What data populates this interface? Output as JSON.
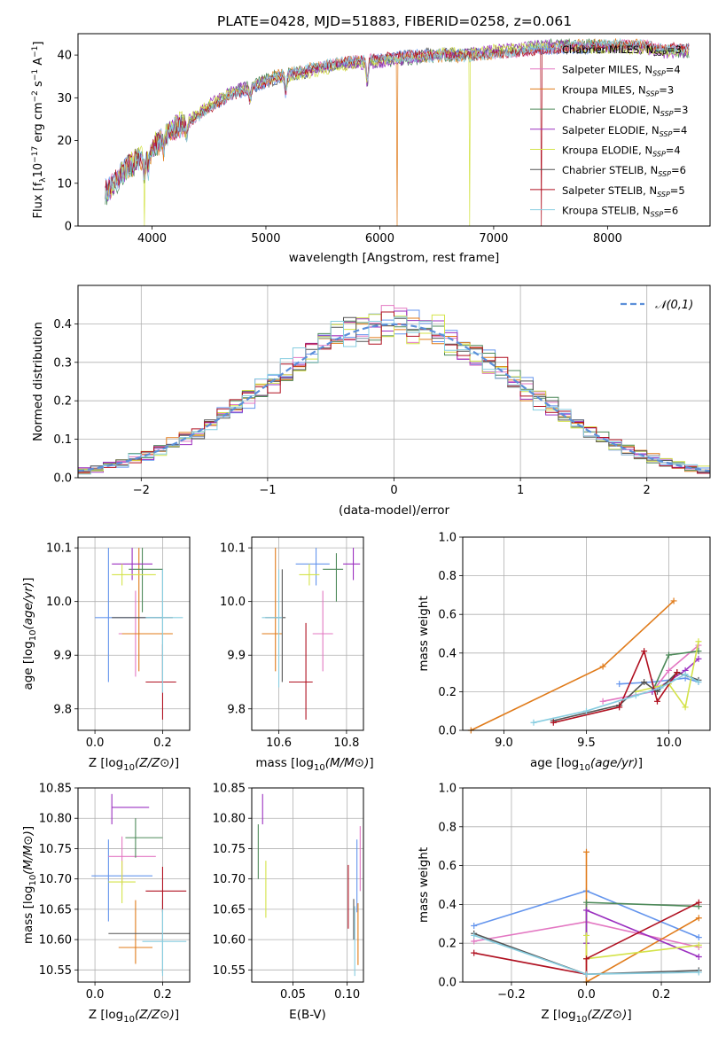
{
  "figure_title": "PLATE=0428, MJD=51883, FIBERID=0258, z=0.061",
  "models": [
    {
      "name": "Chabrier MILES",
      "nssp": "3",
      "color": "#6495ed"
    },
    {
      "name": "Salpeter MILES",
      "nssp": "4",
      "color": "#e377c2"
    },
    {
      "name": "Kroupa MILES",
      "nssp": "3",
      "color": "#e07b1a"
    },
    {
      "name": "Chabrier ELODIE",
      "nssp": "3",
      "color": "#4e8a5a"
    },
    {
      "name": "Salpeter ELODIE",
      "nssp": "4",
      "color": "#9b30c0"
    },
    {
      "name": "Kroupa ELODIE",
      "nssp": "4",
      "color": "#d4e34a"
    },
    {
      "name": "Chabrier STELIB",
      "nssp": "6",
      "color": "#555555"
    },
    {
      "name": "Salpeter STELIB",
      "nssp": "5",
      "color": "#b01020"
    },
    {
      "name": "Kroupa STELIB",
      "nssp": "6",
      "color": "#87cde0"
    }
  ],
  "chart_data": [
    {
      "id": "spectrum",
      "type": "line",
      "xlabel": "wavelength [Angstrom, rest frame]",
      "ylabel": "Flux [f",
      "xlim": [
        3350,
        8900
      ],
      "ylim": [
        0,
        45
      ],
      "xticks": [
        4000,
        5000,
        6000,
        7000,
        8000
      ],
      "yticks": [
        0,
        10,
        20,
        30,
        40
      ],
      "continuum": [
        [
          3600,
          8
        ],
        [
          3700,
          11
        ],
        [
          3800,
          14
        ],
        [
          3900,
          16
        ],
        [
          4000,
          18
        ],
        [
          4100,
          21
        ],
        [
          4200,
          23
        ],
        [
          4300,
          24
        ],
        [
          4500,
          28
        ],
        [
          4700,
          31
        ],
        [
          4900,
          33
        ],
        [
          5100,
          35
        ],
        [
          5300,
          36
        ],
        [
          5500,
          37
        ],
        [
          5700,
          38
        ],
        [
          5900,
          38.5
        ],
        [
          6100,
          39
        ],
        [
          6300,
          39.5
        ],
        [
          6500,
          40
        ],
        [
          6700,
          40
        ],
        [
          6900,
          40.5
        ],
        [
          7100,
          41
        ],
        [
          7300,
          41.5
        ],
        [
          7500,
          42
        ],
        [
          7700,
          42
        ],
        [
          7900,
          42
        ],
        [
          8100,
          42
        ],
        [
          8300,
          42
        ],
        [
          8500,
          41
        ],
        [
          8700,
          41
        ]
      ],
      "absorption": [
        [
          3933,
          5
        ],
        [
          3968,
          4
        ],
        [
          4101,
          3
        ],
        [
          4304,
          3
        ],
        [
          4861,
          3
        ],
        [
          5175,
          4
        ],
        [
          5890,
          5
        ],
        [
          6563,
          -3
        ],
        [
          6563,
          2
        ]
      ],
      "drops": [
        {
          "model": 5,
          "x": 3930
        },
        {
          "model": 2,
          "x": 6150
        },
        {
          "model": 5,
          "x": 6790
        },
        {
          "model": 7,
          "x": 7420
        }
      ]
    },
    {
      "id": "residuals",
      "type": "histogram",
      "xlabel": "(data-model)/error",
      "ylabel": "Normed distribution",
      "xlim": [
        -2.5,
        2.5
      ],
      "ylim": [
        0,
        0.5
      ],
      "xticks": [
        -2,
        -1,
        0,
        1,
        2
      ],
      "yticks": [
        0.0,
        0.1,
        0.2,
        0.3,
        0.4
      ],
      "bin_width": 0.1,
      "reference_label": "𝒩(0,1)",
      "reference_color": "#5b8fd9"
    },
    {
      "id": "age_vs_Z",
      "type": "errorbar",
      "xlabel": "Z [log10(Z/Z⊙)]",
      "ylabel": "age [log10(age/yr)]",
      "xlim": [
        -0.05,
        0.28
      ],
      "ylim": [
        9.76,
        10.12
      ],
      "xticks": [
        0.0,
        0.2
      ],
      "yticks": [
        9.8,
        9.9,
        10.0,
        10.1
      ],
      "points": [
        {
          "m": 0,
          "x": 0.04,
          "y": 9.97,
          "xl": 0.0,
          "xh": 0.2,
          "yl": 9.85,
          "yh": 10.1
        },
        {
          "m": 1,
          "x": 0.12,
          "y": 9.94,
          "xl": 0.07,
          "xh": 0.2,
          "yl": 9.86,
          "yh": 10.02
        },
        {
          "m": 2,
          "x": 0.13,
          "y": 9.94,
          "xl": 0.08,
          "xh": 0.23,
          "yl": 9.87,
          "yh": 10.1
        },
        {
          "m": 3,
          "x": 0.14,
          "y": 10.06,
          "xl": 0.1,
          "xh": 0.2,
          "yl": 9.98,
          "yh": 10.1
        },
        {
          "m": 4,
          "x": 0.11,
          "y": 10.07,
          "xl": 0.05,
          "xh": 0.17,
          "yl": 10.04,
          "yh": 10.1
        },
        {
          "m": 5,
          "x": 0.08,
          "y": 10.05,
          "xl": 0.05,
          "xh": 0.18,
          "yl": 10.03,
          "yh": 10.07
        },
        {
          "m": 6,
          "x": 0.2,
          "y": 9.97,
          "xl": 0.05,
          "xh": 0.23,
          "yl": 9.85,
          "yh": 10.06
        },
        {
          "m": 7,
          "x": 0.2,
          "y": 9.85,
          "xl": 0.15,
          "xh": 0.24,
          "yl": 9.78,
          "yh": 9.92
        },
        {
          "m": 8,
          "x": 0.2,
          "y": 9.97,
          "xl": 0.15,
          "xh": 0.26,
          "yl": 9.83,
          "yh": 10.06
        }
      ]
    },
    {
      "id": "age_vs_mass",
      "type": "errorbar",
      "xlabel": "mass [log10(M/M⊙)]",
      "ylabel": "",
      "xlim": [
        10.52,
        10.85
      ],
      "ylim": [
        9.76,
        10.12
      ],
      "xticks": [
        10.6,
        10.8
      ],
      "yticks": [
        9.8,
        9.9,
        10.0,
        10.1
      ],
      "points": [
        {
          "m": 0,
          "x": 10.71,
          "y": 10.07,
          "xl": 10.65,
          "xh": 10.75,
          "yl": 10.03,
          "yh": 10.1
        },
        {
          "m": 1,
          "x": 10.73,
          "y": 9.94,
          "xl": 10.7,
          "xh": 10.76,
          "yl": 9.87,
          "yh": 10.02
        },
        {
          "m": 2,
          "x": 10.59,
          "y": 9.94,
          "xl": 10.55,
          "xh": 10.61,
          "yl": 9.87,
          "yh": 10.1
        },
        {
          "m": 3,
          "x": 10.77,
          "y": 10.06,
          "xl": 10.73,
          "xh": 10.79,
          "yl": 10.0,
          "yh": 10.09
        },
        {
          "m": 4,
          "x": 10.82,
          "y": 10.07,
          "xl": 10.79,
          "xh": 10.84,
          "yl": 10.04,
          "yh": 10.1
        },
        {
          "m": 5,
          "x": 10.69,
          "y": 10.05,
          "xl": 10.66,
          "xh": 10.72,
          "yl": 10.03,
          "yh": 10.07
        },
        {
          "m": 6,
          "x": 10.61,
          "y": 9.97,
          "xl": 10.56,
          "xh": 10.62,
          "yl": 9.85,
          "yh": 10.06
        },
        {
          "m": 7,
          "x": 10.68,
          "y": 9.85,
          "xl": 10.63,
          "xh": 10.7,
          "yl": 9.78,
          "yh": 9.96
        },
        {
          "m": 8,
          "x": 10.6,
          "y": 9.97,
          "xl": 10.55,
          "xh": 10.61,
          "yl": 9.84,
          "yh": 10.06
        }
      ]
    },
    {
      "id": "weight_vs_age",
      "type": "line",
      "xlabel": "age [log10(age/yr)]",
      "ylabel": "mass weight",
      "xlim": [
        8.75,
        10.25
      ],
      "ylim": [
        0,
        1
      ],
      "xticks": [
        9.0,
        9.5,
        10.0
      ],
      "yticks": [
        0.0,
        0.2,
        0.4,
        0.6,
        0.8,
        1.0
      ],
      "series": [
        {
          "m": 0,
          "x": [
            9.7,
            9.9,
            10.1,
            10.18
          ],
          "y": [
            0.24,
            0.25,
            0.27,
            0.25
          ]
        },
        {
          "m": 1,
          "x": [
            9.6,
            9.9,
            10.0,
            10.18
          ],
          "y": [
            0.15,
            0.2,
            0.31,
            0.44
          ]
        },
        {
          "m": 2,
          "x": [
            8.8,
            9.6,
            10.03
          ],
          "y": [
            0.0,
            0.33,
            0.67
          ]
        },
        {
          "m": 3,
          "x": [
            9.9,
            10.0,
            10.18
          ],
          "y": [
            0.2,
            0.39,
            0.41
          ]
        },
        {
          "m": 4,
          "x": [
            9.9,
            10.1,
            10.18
          ],
          "y": [
            0.2,
            0.31,
            0.37
          ]
        },
        {
          "m": 5,
          "x": [
            9.8,
            10.0,
            10.1,
            10.18
          ],
          "y": [
            0.2,
            0.24,
            0.12,
            0.46
          ]
        },
        {
          "m": 6,
          "x": [
            9.3,
            9.7,
            9.85,
            9.93,
            10.05,
            10.18
          ],
          "y": [
            0.05,
            0.13,
            0.25,
            0.2,
            0.3,
            0.26
          ]
        },
        {
          "m": 7,
          "x": [
            9.3,
            9.7,
            9.85,
            9.93,
            10.05
          ],
          "y": [
            0.04,
            0.12,
            0.41,
            0.15,
            0.3
          ]
        },
        {
          "m": 8,
          "x": [
            9.18,
            9.5,
            9.8,
            9.95,
            10.1,
            10.18
          ],
          "y": [
            0.04,
            0.1,
            0.18,
            0.22,
            0.29,
            0.25
          ]
        }
      ]
    },
    {
      "id": "mass_vs_Z",
      "type": "errorbar",
      "xlabel": "Z [log10(Z/Z⊙)]",
      "ylabel": "mass [log10(M/M⊙)]",
      "xlim": [
        -0.05,
        0.28
      ],
      "ylim": [
        10.53,
        10.85
      ],
      "xticks": [
        0.0,
        0.2
      ],
      "yticks": [
        10.55,
        10.6,
        10.65,
        10.7,
        10.75,
        10.8,
        10.85
      ],
      "points": [
        {
          "m": 0,
          "x": 0.04,
          "y": 10.705,
          "xl": -0.01,
          "xh": 0.17,
          "yl": 10.63,
          "yh": 10.765
        },
        {
          "m": 1,
          "x": 0.08,
          "y": 10.737,
          "xl": 0.04,
          "xh": 0.18,
          "yl": 10.69,
          "yh": 10.77
        },
        {
          "m": 2,
          "x": 0.12,
          "y": 10.587,
          "xl": 0.07,
          "xh": 0.17,
          "yl": 10.56,
          "yh": 10.665
        },
        {
          "m": 3,
          "x": 0.12,
          "y": 10.768,
          "xl": 0.09,
          "xh": 0.2,
          "yl": 10.735,
          "yh": 10.8
        },
        {
          "m": 4,
          "x": 0.05,
          "y": 10.818,
          "xl": 0.05,
          "xh": 0.16,
          "yl": 10.79,
          "yh": 10.84
        },
        {
          "m": 5,
          "x": 0.08,
          "y": 10.695,
          "xl": 0.04,
          "xh": 0.12,
          "yl": 10.66,
          "yh": 10.73
        },
        {
          "m": 6,
          "x": 0.2,
          "y": 10.61,
          "xl": 0.04,
          "xh": 0.28,
          "yl": 10.545,
          "yh": 10.665
        },
        {
          "m": 7,
          "x": 0.2,
          "y": 10.68,
          "xl": 0.15,
          "xh": 0.27,
          "yl": 10.645,
          "yh": 10.72
        },
        {
          "m": 8,
          "x": 0.2,
          "y": 10.597,
          "xl": 0.14,
          "xh": 0.27,
          "yl": 10.54,
          "yh": 10.65
        }
      ]
    },
    {
      "id": "mass_vs_EBV",
      "type": "errorbar",
      "xlabel": "E(B-V)",
      "ylabel": "",
      "xlim": [
        0.012,
        0.115
      ],
      "ylim": [
        10.53,
        10.85
      ],
      "xticks": [
        0.05,
        0.1
      ],
      "yticks": [
        10.55,
        10.6,
        10.65,
        10.7,
        10.75,
        10.8,
        10.85
      ],
      "points": [
        {
          "m": 0,
          "x": 0.109,
          "y": 10.7,
          "yl": 10.645,
          "yh": 10.765
        },
        {
          "m": 1,
          "x": 0.112,
          "y": 10.735,
          "yl": 10.68,
          "yh": 10.787
        },
        {
          "m": 2,
          "x": 0.11,
          "y": 10.6,
          "yl": 10.558,
          "yh": 10.66
        },
        {
          "m": 3,
          "x": 0.018,
          "y": 10.745,
          "yl": 10.7,
          "yh": 10.79
        },
        {
          "m": 4,
          "x": 0.022,
          "y": 10.815,
          "yl": 10.79,
          "yh": 10.84
        },
        {
          "m": 5,
          "x": 0.025,
          "y": 10.68,
          "yl": 10.636,
          "yh": 10.73
        },
        {
          "m": 6,
          "x": 0.106,
          "y": 10.63,
          "yl": 10.6,
          "yh": 10.667
        },
        {
          "m": 7,
          "x": 0.101,
          "y": 10.67,
          "yl": 10.618,
          "yh": 10.723
        },
        {
          "m": 8,
          "x": 0.107,
          "y": 10.59,
          "yl": 10.54,
          "yh": 10.655
        }
      ]
    },
    {
      "id": "weight_vs_Z",
      "type": "line",
      "xlabel": "Z [log10(Z/Z⊙)]",
      "ylabel": "mass weight",
      "xlim": [
        -0.33,
        0.33
      ],
      "ylim": [
        0,
        1
      ],
      "xticks": [
        -0.2,
        0.0,
        0.2
      ],
      "yticks": [
        0.0,
        0.2,
        0.4,
        0.6,
        0.8,
        1.0
      ],
      "series": [
        {
          "m": 0,
          "x": [
            -0.3,
            0.0,
            0.3
          ],
          "y": [
            0.29,
            0.47,
            0.23
          ]
        },
        {
          "m": 1,
          "x": [
            -0.3,
            0.0,
            0.3
          ],
          "y": [
            0.21,
            0.31,
            0.18
          ]
        },
        {
          "m": 2,
          "x": [
            0.0,
            0.0,
            0.3
          ],
          "y": [
            0.67,
            0.0,
            0.33
          ]
        },
        {
          "m": 3,
          "x": [
            0.0,
            0.0,
            0.3
          ],
          "y": [
            0.2,
            0.41,
            0.39
          ]
        },
        {
          "m": 4,
          "x": [
            0.0,
            0.0,
            0.3
          ],
          "y": [
            0.2,
            0.37,
            0.13
          ]
        },
        {
          "m": 5,
          "x": [
            0.0,
            0.0,
            0.3
          ],
          "y": [
            0.24,
            0.12,
            0.19
          ]
        },
        {
          "m": 6,
          "x": [
            -0.3,
            0.0,
            0.3
          ],
          "y": [
            0.25,
            0.04,
            0.06
          ]
        },
        {
          "m": 7,
          "x": [
            -0.3,
            0.0,
            0.0,
            0.3
          ],
          "y": [
            0.15,
            0.04,
            0.12,
            0.41
          ]
        },
        {
          "m": 8,
          "x": [
            -0.3,
            0.0,
            0.3
          ],
          "y": [
            0.24,
            0.04,
            0.05
          ]
        }
      ]
    }
  ]
}
